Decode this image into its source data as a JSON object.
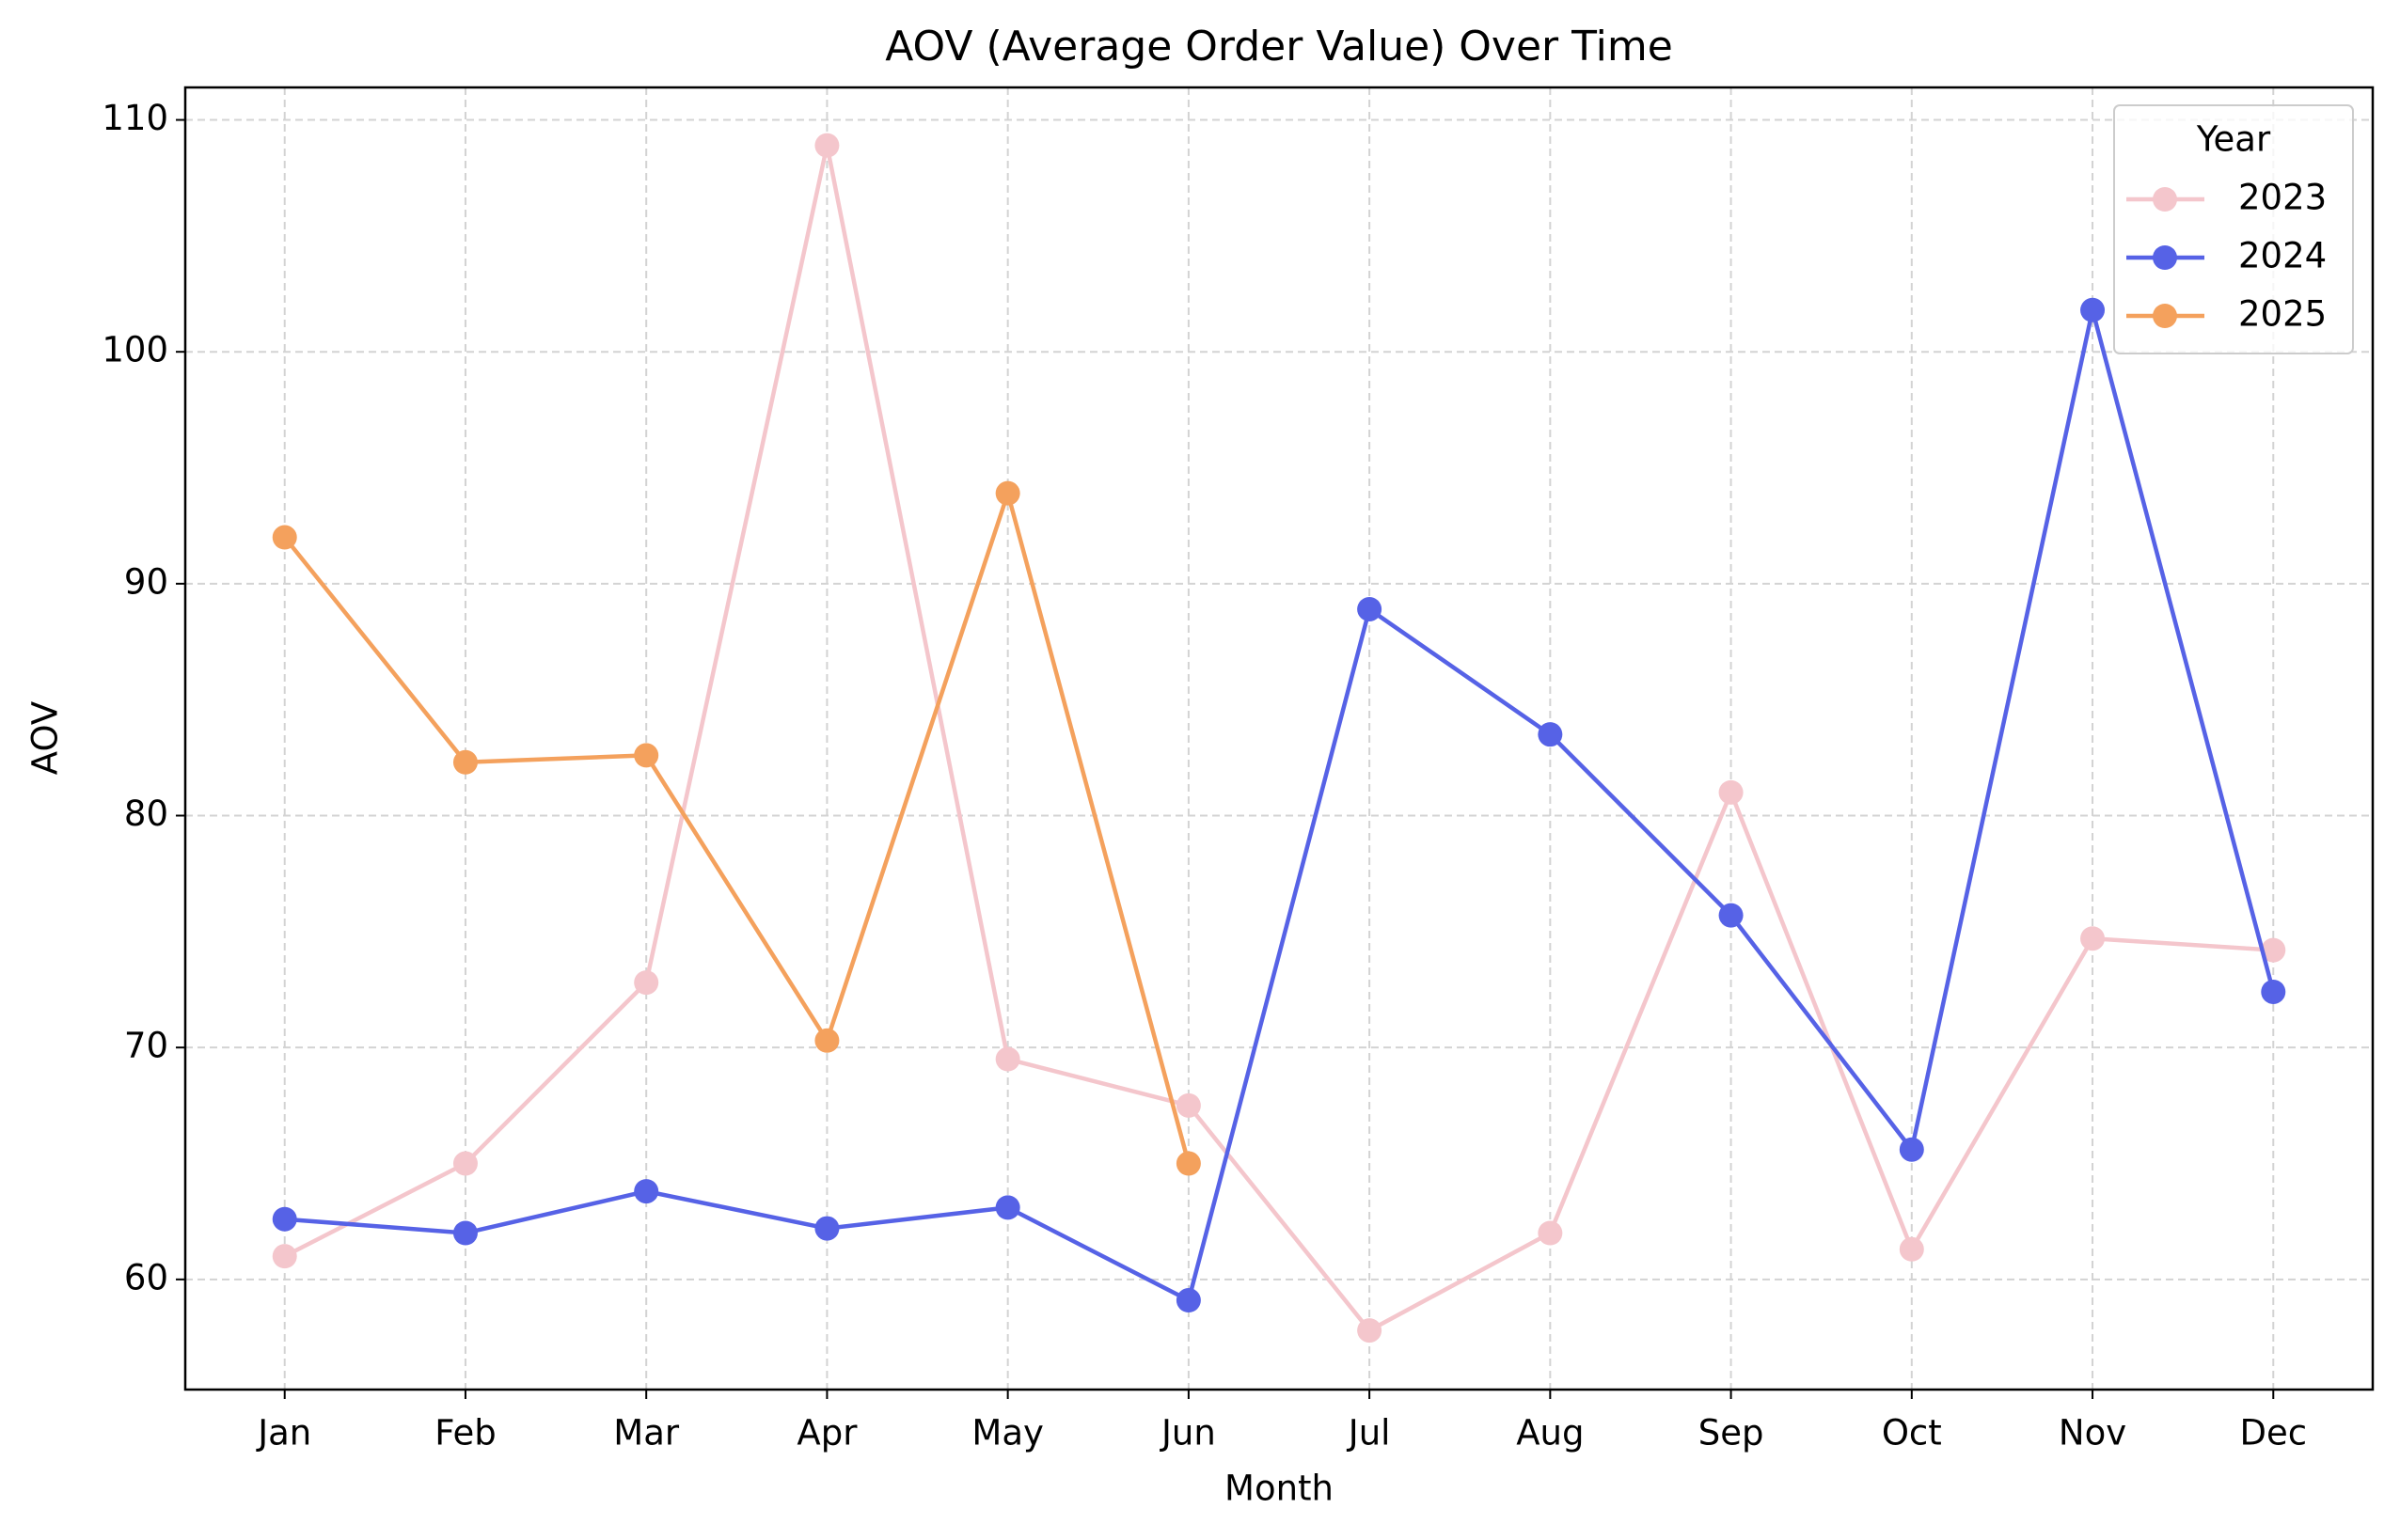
{
  "chart_data": {
    "type": "line",
    "title": "AOV (Average Order Value) Over Time",
    "x_label": "Month",
    "y_label": "AOV",
    "categories": [
      "Jan",
      "Feb",
      "Mar",
      "Apr",
      "May",
      "Jun",
      "Jul",
      "Aug",
      "Sep",
      "Oct",
      "Nov",
      "Dec"
    ],
    "series": [
      {
        "name": "2023",
        "color": "#f4c6cc",
        "values": [
          61.0,
          65.0,
          72.8,
          108.9,
          69.5,
          67.5,
          57.8,
          62.0,
          81.0,
          61.3,
          74.7,
          74.2
        ]
      },
      {
        "name": "2024",
        "color": "#5662e6",
        "values": [
          62.6,
          62.0,
          63.8,
          62.2,
          63.1,
          59.1,
          88.9,
          83.5,
          75.7,
          65.6,
          101.8,
          72.4
        ]
      },
      {
        "name": "2025",
        "color": "#f4a15d",
        "values": [
          92.0,
          82.3,
          82.6,
          70.3,
          93.9,
          65.0,
          null,
          null,
          null,
          null,
          null,
          null
        ]
      }
    ],
    "ylim": [
      55.25,
      111.4
    ],
    "yticks": [
      60,
      70,
      80,
      90,
      100,
      110
    ],
    "grid": true,
    "legend_title": "Year",
    "legend_position": "upper right"
  }
}
